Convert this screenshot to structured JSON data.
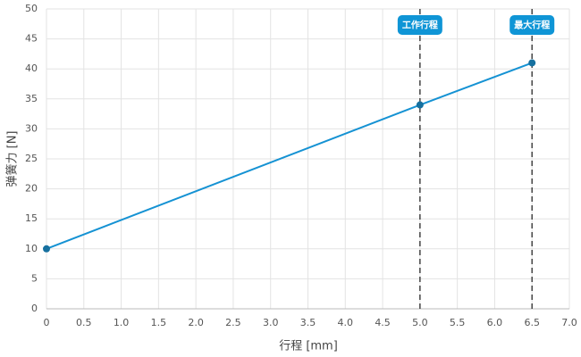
{
  "chart_data": {
    "type": "line",
    "x_label": "行程 [mm]",
    "y_label": "弹簧力 [N]",
    "x": [
      0,
      5,
      6.5
    ],
    "series": [
      {
        "name": "弹簧力",
        "color": "#1592d3",
        "values": [
          10,
          34,
          41
        ]
      }
    ],
    "xlim": [
      0,
      7
    ],
    "xticks": [
      0,
      0.5,
      {
        "value": 1,
        "label": "1.0"
      },
      1.5,
      {
        "value": 2,
        "label": "2.0"
      },
      2.5,
      {
        "value": 3,
        "label": "3.0"
      },
      3.5,
      {
        "value": 4,
        "label": "4.0"
      },
      4.5,
      {
        "value": 5,
        "label": "5.0"
      },
      5.5,
      {
        "value": 6,
        "label": "6.0"
      },
      6.5,
      {
        "value": 7,
        "label": "7.0"
      }
    ],
    "ylim": [
      0,
      50
    ],
    "yticks": [
      0,
      5,
      10,
      15,
      20,
      25,
      30,
      35,
      40,
      45,
      50
    ],
    "grid": true,
    "annotations": [
      {
        "x": 5,
        "label": "工作行程"
      },
      {
        "x": 6.5,
        "label": "最大行程"
      }
    ]
  }
}
